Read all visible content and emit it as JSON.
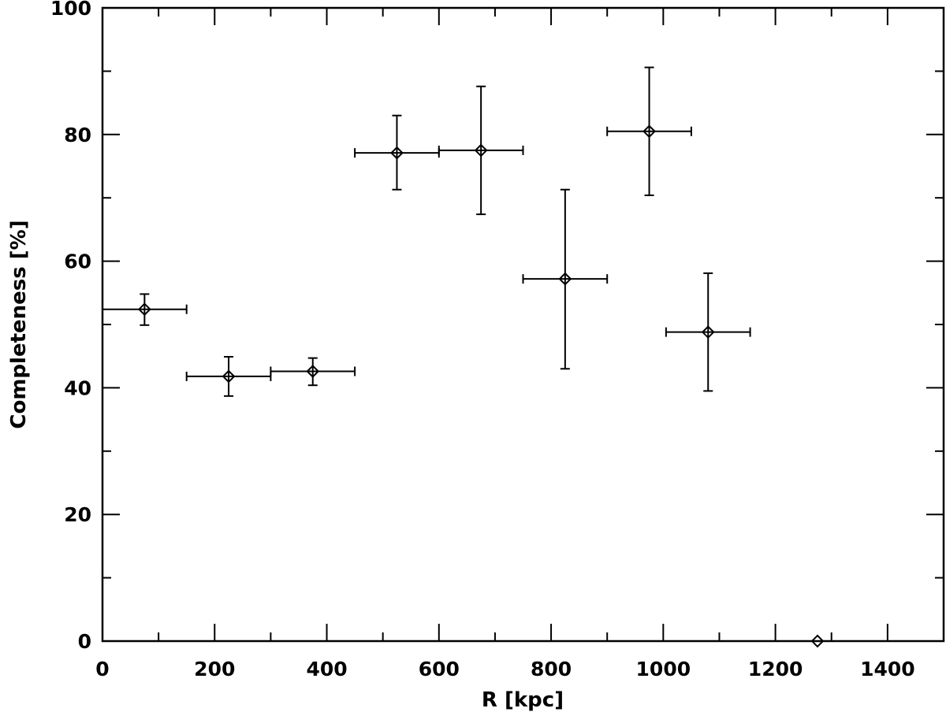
{
  "chart_data": {
    "type": "scatter",
    "title": "",
    "xlabel": "R [kpc]",
    "ylabel": "Completeness [%]",
    "xlim": [
      0,
      1500
    ],
    "ylim": [
      0,
      100
    ],
    "x_major_ticks": [
      0,
      200,
      400,
      600,
      800,
      1000,
      1200,
      1400
    ],
    "x_minor_step": 100,
    "y_major_ticks": [
      0,
      20,
      40,
      60,
      80,
      100
    ],
    "y_minor_step": 10,
    "grid": false,
    "legend": "none",
    "marker": "diamond",
    "color": "#000000",
    "points": [
      {
        "x": 75,
        "y": 52.4,
        "x_err": 75,
        "y_err_low": 2.5,
        "y_err_high": 2.4
      },
      {
        "x": 225,
        "y": 41.8,
        "x_err": 75,
        "y_err_low": 3.1,
        "y_err_high": 3.1
      },
      {
        "x": 375,
        "y": 42.6,
        "x_err": 75,
        "y_err_low": 2.2,
        "y_err_high": 2.1
      },
      {
        "x": 525,
        "y": 77.1,
        "x_err": 75,
        "y_err_low": 5.8,
        "y_err_high": 5.9
      },
      {
        "x": 675,
        "y": 77.5,
        "x_err": 75,
        "y_err_low": 10.1,
        "y_err_high": 10.1
      },
      {
        "x": 825,
        "y": 57.2,
        "x_err": 75,
        "y_err_low": 14.2,
        "y_err_high": 14.1
      },
      {
        "x": 975,
        "y": 80.5,
        "x_err": 75,
        "y_err_low": 10.1,
        "y_err_high": 10.1
      },
      {
        "x": 1080,
        "y": 48.8,
        "x_err": 75,
        "y_err_low": 9.3,
        "y_err_high": 9.3
      },
      {
        "x": 1275,
        "y": 0,
        "x_err": 0,
        "y_err_low": 0,
        "y_err_high": 0
      }
    ]
  }
}
